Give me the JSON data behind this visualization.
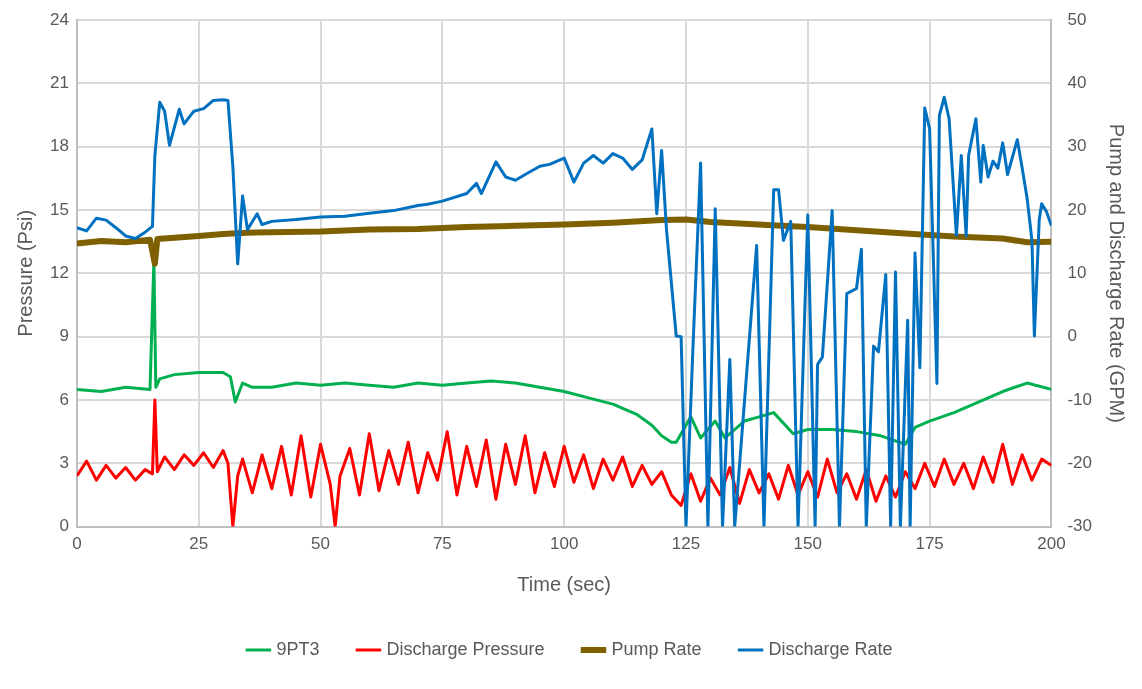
{
  "chart_data": {
    "type": "line",
    "xlabel": "Time (sec)",
    "ylabel": "Pressure (Psi)",
    "y2label": "Pump and Discharge Rate (GPM)",
    "xlim": [
      0,
      200
    ],
    "xticks": [
      0,
      25,
      50,
      75,
      100,
      125,
      150,
      175,
      200
    ],
    "ylim": [
      0,
      24
    ],
    "yticks": [
      0,
      3,
      6,
      9,
      12,
      15,
      18,
      21,
      24
    ],
    "y2lim": [
      -30,
      50
    ],
    "y2ticks": [
      -30,
      -20,
      -10,
      0,
      10,
      20,
      30,
      40,
      50
    ],
    "grid": true,
    "legend": "bottom",
    "marker": "none",
    "line_style": "solid",
    "series": [
      {
        "name": "9PT3",
        "color": "#00b050",
        "x": [
          0,
          5,
          10,
          15,
          15.8,
          16.2,
          17,
          20,
          25,
          30,
          31.5,
          32.5,
          34,
          36,
          40,
          45,
          50,
          55,
          60,
          65,
          70,
          75,
          80,
          85,
          90,
          95,
          100,
          105,
          110,
          115,
          118,
          120,
          122,
          123,
          126,
          128,
          131,
          133,
          137,
          140,
          143,
          147,
          150,
          155,
          160,
          165,
          170,
          172,
          175,
          180,
          185,
          190,
          195,
          200
        ],
        "values": [
          6.5,
          6.4,
          6.6,
          6.5,
          12.6,
          6.6,
          7.0,
          7.2,
          7.3,
          7.3,
          7.1,
          5.9,
          6.8,
          6.6,
          6.6,
          6.8,
          6.7,
          6.8,
          6.7,
          6.6,
          6.8,
          6.7,
          6.8,
          6.9,
          6.8,
          6.6,
          6.4,
          6.1,
          5.8,
          5.3,
          4.8,
          4.3,
          4.0,
          4.0,
          5.2,
          4.2,
          5.0,
          4.2,
          5.0,
          5.2,
          5.4,
          4.4,
          4.6,
          4.6,
          4.5,
          4.3,
          3.9,
          4.7,
          5.0,
          5.4,
          5.9,
          6.4,
          6.8,
          6.5
        ]
      },
      {
        "name": "Discharge Pressure",
        "color": "#ff0000",
        "x": [
          0,
          2,
          4,
          6,
          8,
          10,
          12,
          14,
          15.5,
          16,
          16.5,
          18,
          20,
          22,
          24,
          26,
          28,
          30,
          31,
          32,
          33,
          34,
          36,
          38,
          40,
          42,
          44,
          46,
          48,
          50,
          52,
          53,
          54,
          56,
          58,
          60,
          62,
          64,
          66,
          68,
          70,
          72,
          74,
          76,
          78,
          80,
          82,
          84,
          86,
          88,
          90,
          92,
          94,
          96,
          98,
          100,
          102,
          104,
          106,
          108,
          110,
          112,
          114,
          116,
          118,
          120,
          122,
          124,
          126,
          128,
          130,
          132,
          134,
          136,
          138,
          140,
          142,
          144,
          146,
          148,
          150,
          152,
          154,
          156,
          158,
          160,
          162,
          164,
          166,
          168,
          170,
          172,
          174,
          176,
          178,
          180,
          182,
          184,
          186,
          188,
          190,
          192,
          194,
          196,
          198,
          200
        ],
        "values": [
          2.4,
          3.1,
          2.2,
          2.9,
          2.3,
          2.8,
          2.2,
          2.7,
          2.5,
          6.0,
          2.6,
          3.3,
          2.7,
          3.4,
          2.9,
          3.5,
          2.8,
          3.6,
          3.0,
          0.0,
          2.4,
          3.2,
          1.6,
          3.4,
          1.8,
          3.8,
          1.5,
          4.3,
          1.4,
          3.9,
          2.0,
          0.0,
          2.4,
          3.7,
          1.5,
          4.4,
          1.7,
          3.6,
          2.0,
          4.0,
          1.6,
          3.5,
          2.2,
          4.5,
          1.5,
          3.8,
          1.9,
          4.1,
          1.3,
          3.9,
          2.0,
          4.3,
          1.6,
          3.5,
          1.9,
          3.8,
          2.1,
          3.4,
          1.8,
          3.2,
          2.2,
          3.3,
          1.9,
          2.9,
          2.0,
          2.6,
          1.5,
          1.0,
          2.5,
          1.2,
          2.3,
          1.5,
          2.8,
          1.1,
          2.7,
          1.6,
          2.5,
          1.3,
          2.9,
          1.5,
          2.6,
          1.4,
          3.2,
          1.6,
          2.5,
          1.3,
          2.7,
          1.2,
          2.4,
          1.4,
          2.6,
          1.8,
          3.0,
          1.9,
          3.2,
          2.0,
          3.0,
          1.8,
          3.3,
          2.1,
          3.9,
          2.0,
          3.4,
          2.2,
          3.2,
          2.9
        ]
      },
      {
        "name": "Pump Rate",
        "color": "#7f6000",
        "axis": "y2",
        "x": [
          0,
          5,
          10,
          15,
          16,
          16.5,
          20,
          25,
          30,
          35,
          40,
          50,
          60,
          70,
          80,
          90,
          100,
          110,
          120,
          125,
          130,
          140,
          150,
          160,
          170,
          180,
          190,
          195,
          200
        ],
        "values": [
          14.7,
          15.1,
          14.9,
          15.3,
          11.5,
          15.4,
          15.6,
          15.9,
          16.2,
          16.4,
          16.5,
          16.6,
          16.9,
          17.0,
          17.3,
          17.5,
          17.7,
          18.0,
          18.4,
          18.5,
          18.1,
          17.7,
          17.3,
          16.8,
          16.3,
          15.8,
          15.5,
          14.9,
          15.0
        ]
      },
      {
        "name": "Discharge Rate",
        "color": "#0070c0",
        "axis": "y2",
        "x": [
          0,
          2,
          4,
          6,
          8,
          10,
          12,
          14,
          15.5,
          16,
          17,
          18,
          19,
          21,
          22,
          24,
          26,
          28,
          30,
          31,
          32,
          33,
          34,
          35,
          37,
          38,
          40,
          45,
          50,
          55,
          60,
          65,
          70,
          72,
          75,
          80,
          82,
          83,
          86,
          88,
          90,
          92,
          95,
          97,
          100,
          102,
          104,
          106,
          108,
          110,
          112,
          114,
          116,
          118,
          119,
          120,
          121,
          122,
          123,
          124,
          125,
          126.5,
          128,
          129.5,
          131,
          132.5,
          134,
          135,
          139.5,
          141,
          143,
          144,
          145,
          146.5,
          148,
          150,
          151.5,
          152,
          153,
          155,
          156.5,
          158,
          160,
          161,
          162,
          163.5,
          164.5,
          166,
          167,
          168,
          169,
          170.5,
          171,
          172,
          173,
          174,
          175,
          176.5,
          177,
          178,
          179,
          180.5,
          181.5,
          182.5,
          183,
          184.5,
          185.5,
          186,
          187,
          188,
          189,
          190,
          191,
          193,
          194,
          195,
          196,
          196.5,
          197.5,
          198,
          199,
          200
        ],
        "values": [
          17.2,
          16.7,
          18.7,
          18.4,
          17.2,
          15.9,
          15.5,
          16.5,
          17.4,
          28.6,
          37,
          35.6,
          30.2,
          35.9,
          33.6,
          35.6,
          36,
          37.3,
          37.4,
          37.3,
          26.9,
          11.5,
          22.2,
          16.9,
          19.4,
          17.7,
          18.2,
          18.5,
          18.9,
          19,
          19.5,
          19.9,
          20.7,
          20.9,
          21.4,
          22.6,
          24.2,
          22.6,
          27.6,
          25.2,
          24.7,
          25.6,
          26.9,
          27.2,
          28.2,
          24.4,
          27.4,
          28.6,
          27.4,
          28.9,
          28.2,
          26.4,
          27.9,
          32.8,
          19.4,
          29.4,
          16.9,
          8.5,
          0.1,
          0,
          -30,
          -0.4,
          27.4,
          -30,
          20.2,
          -30,
          -3.6,
          -30,
          14.4,
          -30,
          23.2,
          23.2,
          15.2,
          18.2,
          -30,
          19.2,
          -30,
          -4.4,
          -3.2,
          19.9,
          -30,
          6.8,
          7.6,
          13.8,
          -30,
          -1.5,
          -2.4,
          9.8,
          -30,
          10.2,
          -30,
          2.6,
          -30,
          13.2,
          -4.9,
          36.1,
          32.8,
          -7.4,
          34.9,
          37.8,
          34.4,
          16,
          28.6,
          15.9,
          28.6,
          34.4,
          24.4,
          30.2,
          25.2,
          27.7,
          26.6,
          30.6,
          25.6,
          31.1,
          26.6,
          21.9,
          15.2,
          0.1,
          18.5,
          21,
          19.7,
          17.5
        ]
      }
    ]
  }
}
